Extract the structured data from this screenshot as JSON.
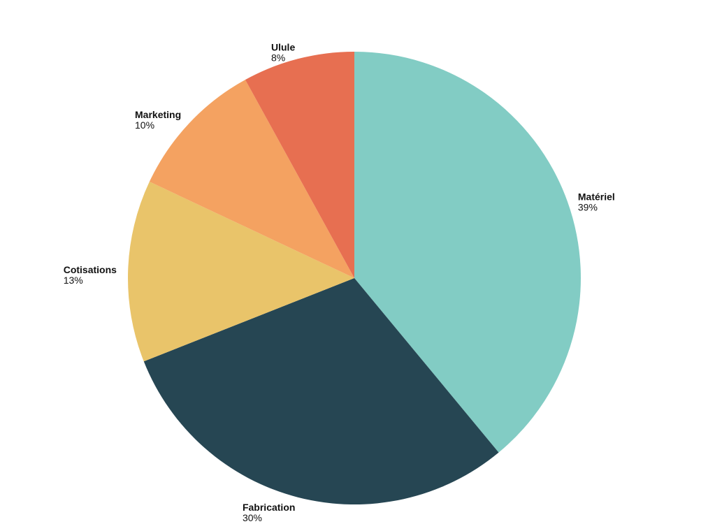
{
  "chart_data": {
    "type": "pie",
    "categories": [
      "Matériel",
      "Fabrication",
      "Cotisations",
      "Marketing",
      "Ulule"
    ],
    "values": [
      39,
      30,
      13,
      10,
      8
    ],
    "value_labels": [
      "39%",
      "30%",
      "13%",
      "10%",
      "8%"
    ],
    "colors": [
      "#82ccc4",
      "#264653",
      "#e9c46a",
      "#f4a261",
      "#e76f51"
    ]
  }
}
